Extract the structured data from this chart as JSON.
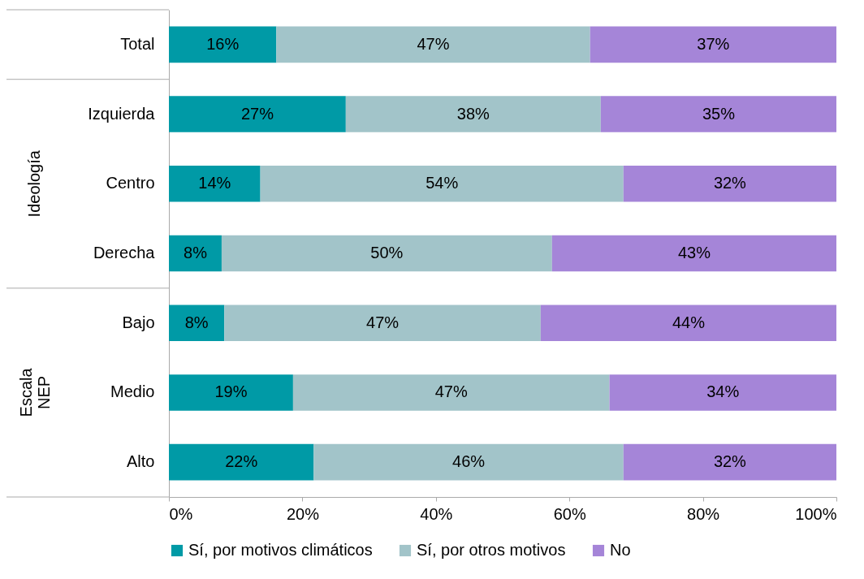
{
  "chart_data": {
    "type": "bar",
    "orientation": "horizontal",
    "stacked": true,
    "legend": "bottom",
    "grid": false,
    "categories": [
      "Total",
      "Izquierda",
      "Centro",
      "Derecha",
      "Bajo",
      "Medio",
      "Alto"
    ],
    "series": [
      {
        "name": "Sí, por motivos climáticos",
        "color": "#009aa6",
        "values": [
          16.1,
          26.5,
          13.7,
          7.9,
          8.3,
          18.6,
          21.7
        ],
        "value_labels": [
          "16%",
          "27%",
          "14%",
          "8%",
          "8%",
          "19%",
          "22%"
        ]
      },
      {
        "name": "Sí, por otros motivos",
        "color": "#a2c4c9",
        "values": [
          47.0,
          38.2,
          54.4,
          49.5,
          47.4,
          47.4,
          46.4
        ],
        "value_labels": [
          "47%",
          "38%",
          "54%",
          "50%",
          "47%",
          "47%",
          "46%"
        ]
      },
      {
        "name": "No",
        "color": "#a585d8",
        "values": [
          36.9,
          35.3,
          31.9,
          42.6,
          44.3,
          34.0,
          31.9
        ],
        "value_labels": [
          "37%",
          "35%",
          "32%",
          "43%",
          "44%",
          "34%",
          "32%"
        ]
      }
    ],
    "xlim": [
      0,
      100
    ],
    "xticks": [
      {
        "value": 0,
        "label": "0%"
      },
      {
        "value": 20,
        "label": "20%"
      },
      {
        "value": 40,
        "label": "40%"
      },
      {
        "value": 60,
        "label": "60%"
      },
      {
        "value": 80,
        "label": "80%"
      },
      {
        "value": 100,
        "label": "100%"
      }
    ],
    "annotations": [
      "Ideología",
      "Escala NEP"
    ]
  }
}
